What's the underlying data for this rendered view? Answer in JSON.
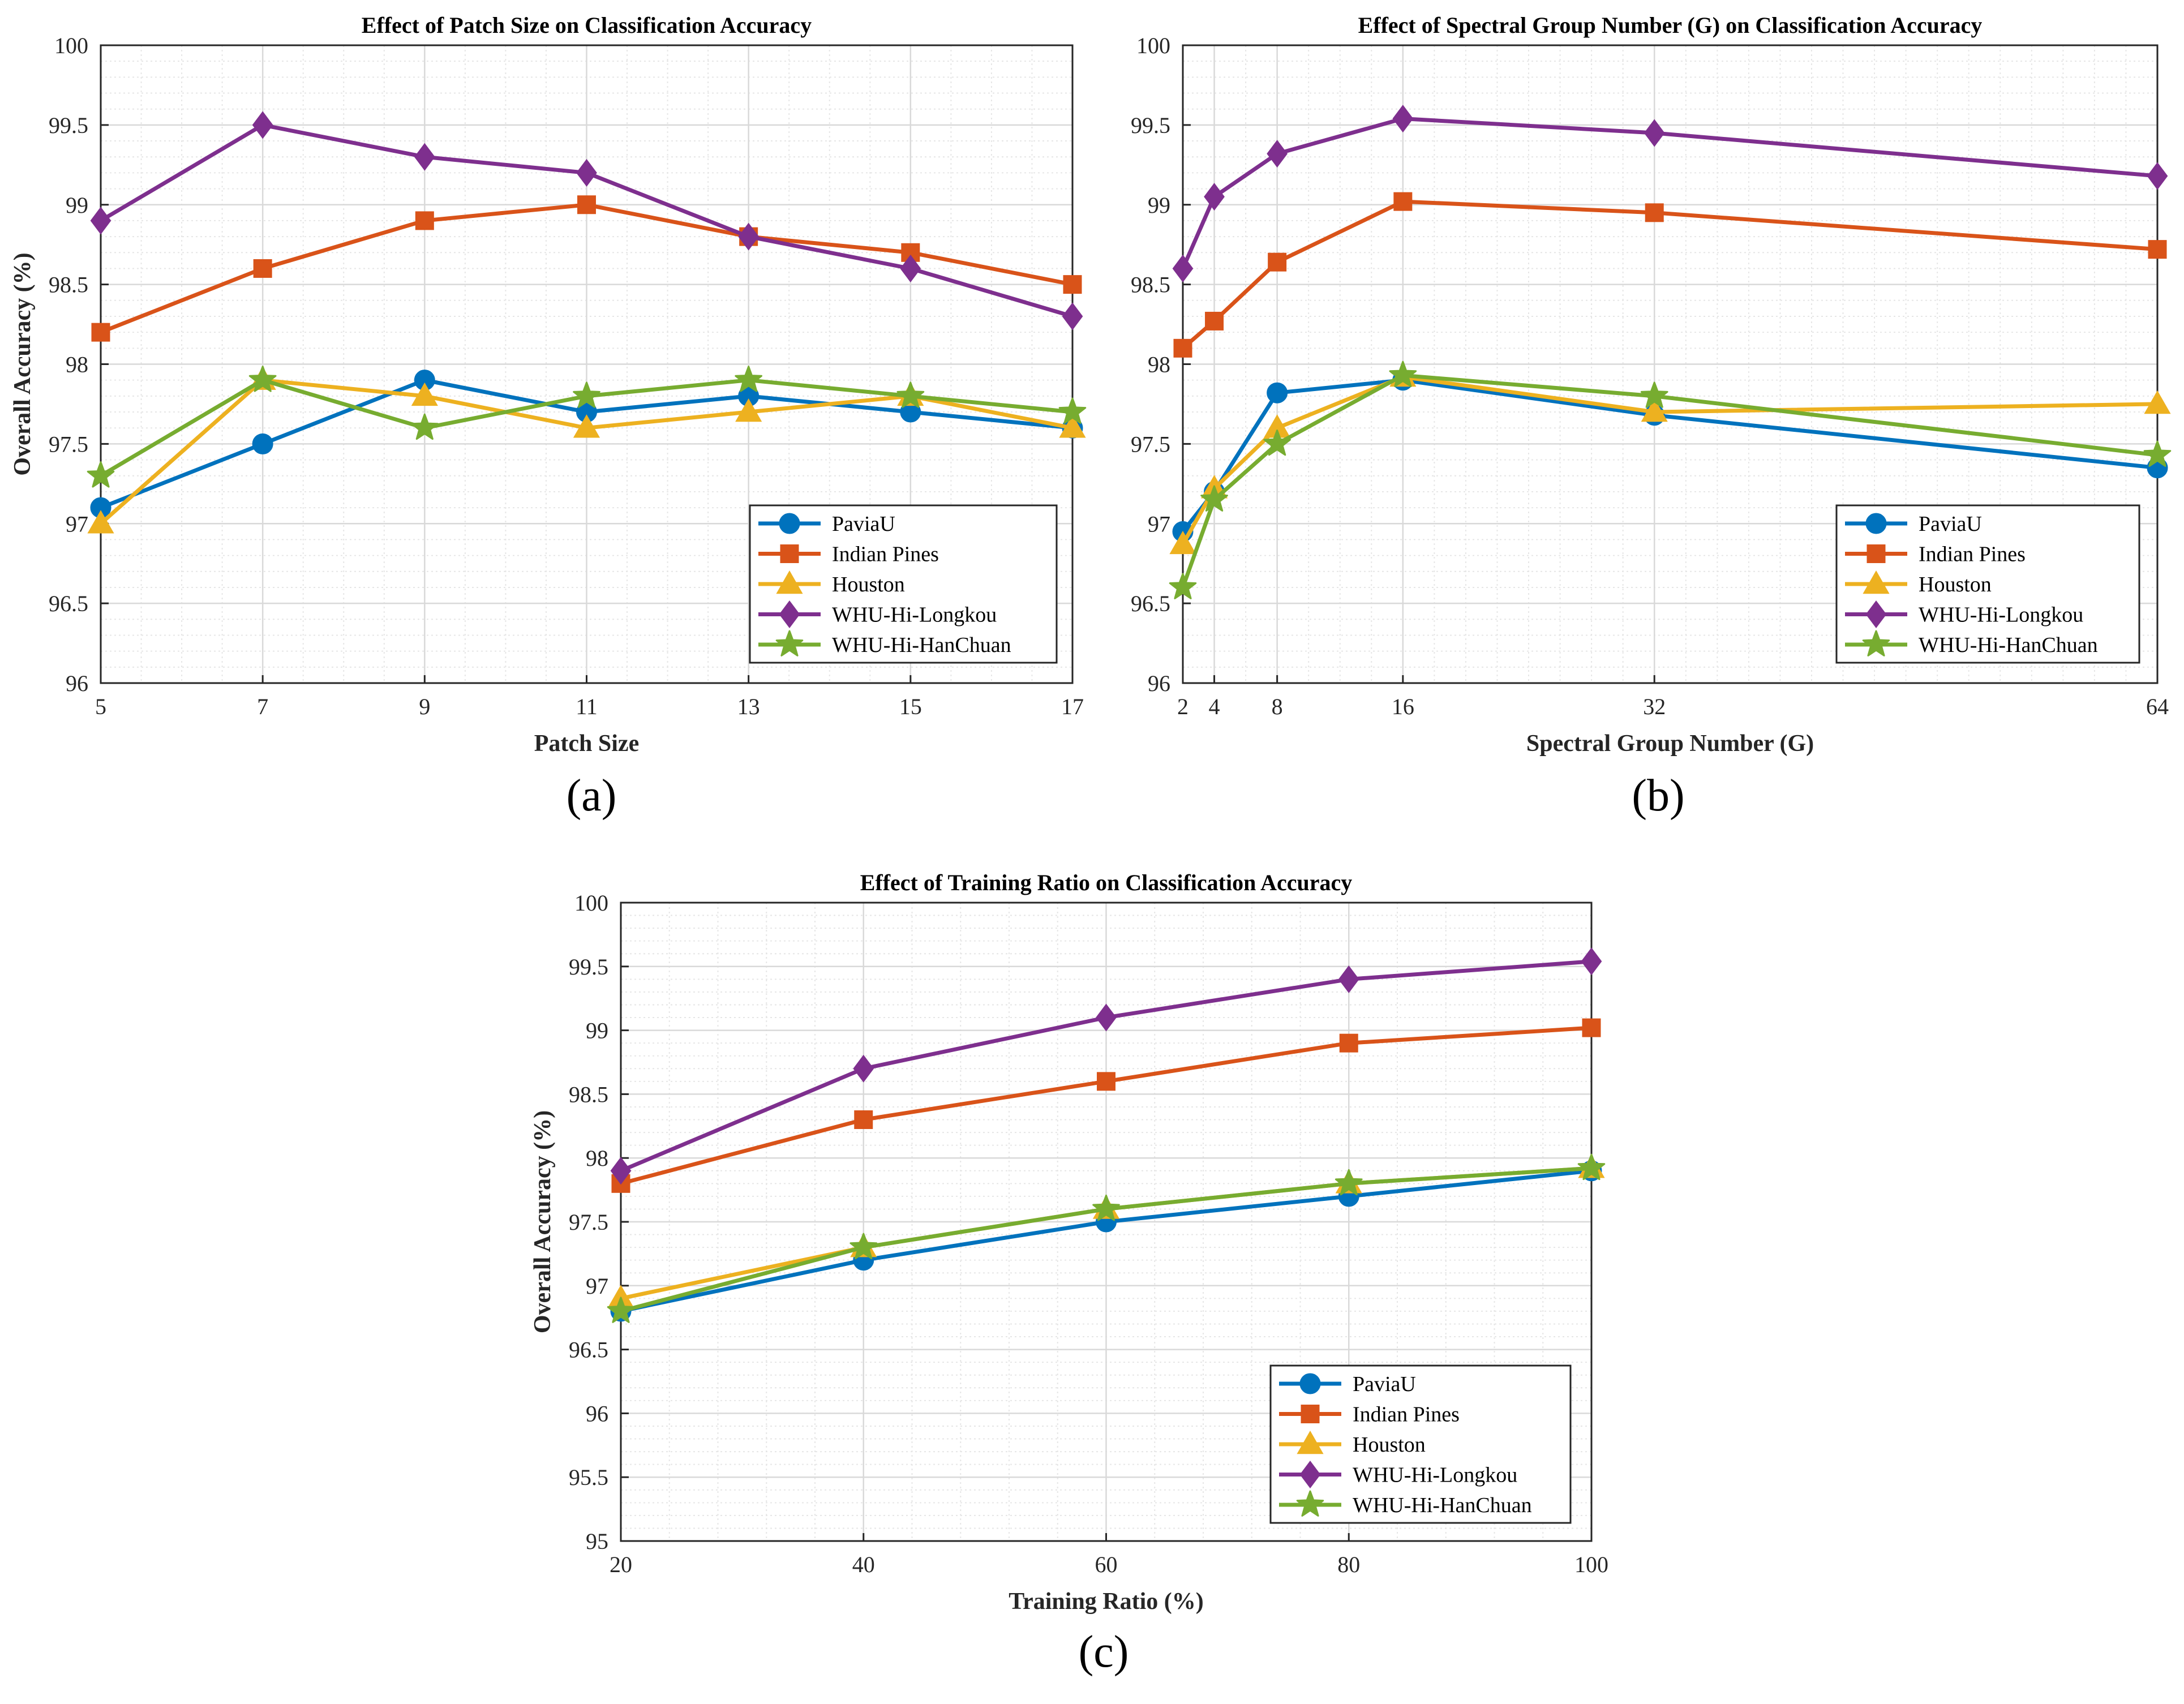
{
  "colors": {
    "PaviaU": "#0072BD",
    "Indian Pines": "#D95319",
    "Houston": "#EDB120",
    "WHU-Hi-Longkou": "#7E2F8E",
    "WHU-Hi-HanChuan": "#77AC30",
    "grid": "#d9d9d9",
    "minor_grid": "#e6e6e6",
    "axis": "#262626"
  },
  "chart_data": [
    {
      "id": "a",
      "type": "line",
      "panel_label": "(a)",
      "title": "Effect of Patch Size on Classification Accuracy",
      "xlabel": "Patch Size",
      "ylabel": "Overall Accuracy (%)",
      "xlim": [
        5,
        17
      ],
      "ylim": [
        96,
        100
      ],
      "xticks": [
        5,
        7,
        9,
        11,
        13,
        15,
        17
      ],
      "yticks": [
        96,
        96.5,
        97,
        97.5,
        98,
        98.5,
        99,
        99.5,
        100
      ],
      "x": [
        5,
        7,
        9,
        11,
        13,
        15,
        17
      ],
      "grid": true,
      "minor_grid": true,
      "legend": "bottom-right",
      "series": [
        {
          "name": "PaviaU",
          "marker": "circle",
          "values": [
            97.1,
            97.5,
            97.9,
            97.7,
            97.8,
            97.7,
            97.6
          ]
        },
        {
          "name": "Indian Pines",
          "marker": "square",
          "values": [
            98.2,
            98.6,
            98.9,
            99.0,
            98.8,
            98.7,
            98.5
          ]
        },
        {
          "name": "Houston",
          "marker": "triangle",
          "values": [
            97.0,
            97.9,
            97.8,
            97.6,
            97.7,
            97.8,
            97.6
          ]
        },
        {
          "name": "WHU-Hi-Longkou",
          "marker": "diamond",
          "values": [
            98.9,
            99.5,
            99.3,
            99.2,
            98.8,
            98.6,
            98.3
          ]
        },
        {
          "name": "WHU-Hi-HanChuan",
          "marker": "star",
          "values": [
            97.3,
            97.9,
            97.6,
            97.8,
            97.9,
            97.8,
            97.7
          ]
        }
      ]
    },
    {
      "id": "b",
      "type": "line",
      "panel_label": "(b)",
      "title": "Effect of Spectral Group Number (G) on Classification Accuracy",
      "xlabel": "Spectral Group Number (G)",
      "ylabel": "",
      "xlim": [
        2,
        64
      ],
      "ylim": [
        96,
        100
      ],
      "xticks": [
        2,
        4,
        8,
        16,
        32,
        64
      ],
      "yticks": [
        96,
        96.5,
        97,
        97.5,
        98,
        98.5,
        99,
        99.5,
        100
      ],
      "x": [
        2,
        4,
        8,
        16,
        32,
        64
      ],
      "grid": true,
      "minor_grid": true,
      "legend": "bottom-right",
      "series": [
        {
          "name": "PaviaU",
          "marker": "circle",
          "values": [
            96.95,
            97.2,
            97.82,
            97.9,
            97.68,
            97.35
          ]
        },
        {
          "name": "Indian Pines",
          "marker": "square",
          "values": [
            98.1,
            98.27,
            98.64,
            99.02,
            98.95,
            98.72
          ]
        },
        {
          "name": "Houston",
          "marker": "triangle",
          "values": [
            96.87,
            97.22,
            97.6,
            97.92,
            97.7,
            97.75
          ]
        },
        {
          "name": "WHU-Hi-Longkou",
          "marker": "diamond",
          "values": [
            98.6,
            99.05,
            99.32,
            99.54,
            99.45,
            99.18
          ]
        },
        {
          "name": "WHU-Hi-HanChuan",
          "marker": "star",
          "values": [
            96.6,
            97.15,
            97.5,
            97.93,
            97.8,
            97.43
          ]
        }
      ]
    },
    {
      "id": "c",
      "type": "line",
      "panel_label": "(c)",
      "title": "Effect of Training Ratio on Classification Accuracy",
      "xlabel": "Training Ratio (%)",
      "ylabel": "Overall Accuracy (%)",
      "xlim": [
        20,
        100
      ],
      "ylim": [
        95,
        100
      ],
      "xticks": [
        20,
        40,
        60,
        80,
        100
      ],
      "yticks": [
        95,
        95.5,
        96,
        96.5,
        97,
        97.5,
        98,
        98.5,
        99,
        99.5,
        100
      ],
      "x": [
        20,
        40,
        60,
        80,
        100
      ],
      "grid": true,
      "minor_grid": true,
      "legend": "bottom-right",
      "series": [
        {
          "name": "PaviaU",
          "marker": "circle",
          "values": [
            96.8,
            97.2,
            97.5,
            97.7,
            97.9
          ]
        },
        {
          "name": "Indian Pines",
          "marker": "square",
          "values": [
            97.8,
            98.3,
            98.6,
            98.9,
            99.02
          ]
        },
        {
          "name": "Houston",
          "marker": "triangle",
          "values": [
            96.9,
            97.3,
            97.6,
            97.8,
            97.92
          ]
        },
        {
          "name": "WHU-Hi-Longkou",
          "marker": "diamond",
          "values": [
            97.9,
            98.7,
            99.1,
            99.4,
            99.54
          ]
        },
        {
          "name": "WHU-Hi-HanChuan",
          "marker": "star",
          "values": [
            96.8,
            97.3,
            97.6,
            97.8,
            97.92
          ]
        }
      ]
    }
  ]
}
